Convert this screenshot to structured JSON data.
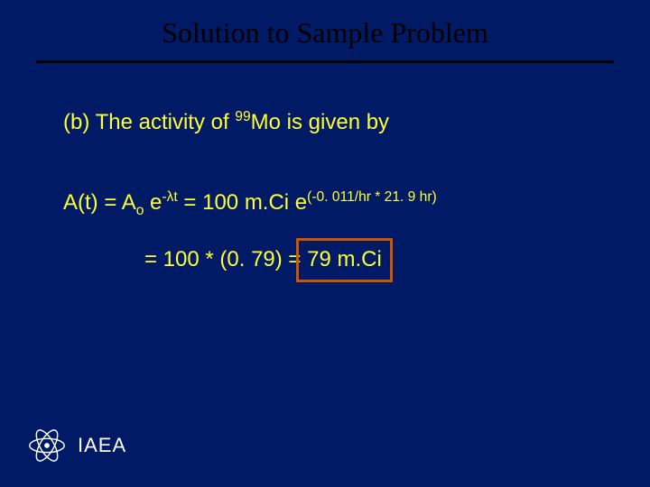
{
  "slide": {
    "title": "Solution to Sample Problem",
    "title_color": "#000000",
    "title_font": "Times New Roman",
    "title_fontsize": 32,
    "background_color": "#001a66",
    "divider_color": "#000000",
    "body_text_color": "#ffff33",
    "body_fontsize": 24,
    "highlight_border_color": "#cc5500",
    "highlight_border_width": 3,
    "footer": {
      "label": "IAEA",
      "label_color": "#ffffff",
      "logo_stroke": "#ffffff"
    },
    "line1": {
      "prefix": "(b)  The activity of ",
      "iso_sup": "99",
      "iso": "Mo",
      "suffix": " is given by"
    },
    "line2": {
      "lhs": "A(t)  =  A",
      "A_sub": "o",
      "space1": " e",
      "exp1_a": "-",
      "exp1_lambda": "λ",
      "exp1_b": "t",
      "mid": "  =  100 m.Ci e",
      "exp2": "(-0. 011/hr * 21. 9 hr)"
    },
    "line3": {
      "a": "=  100 * (0. 79)  =  ",
      "b": "79 m.Ci"
    }
  }
}
